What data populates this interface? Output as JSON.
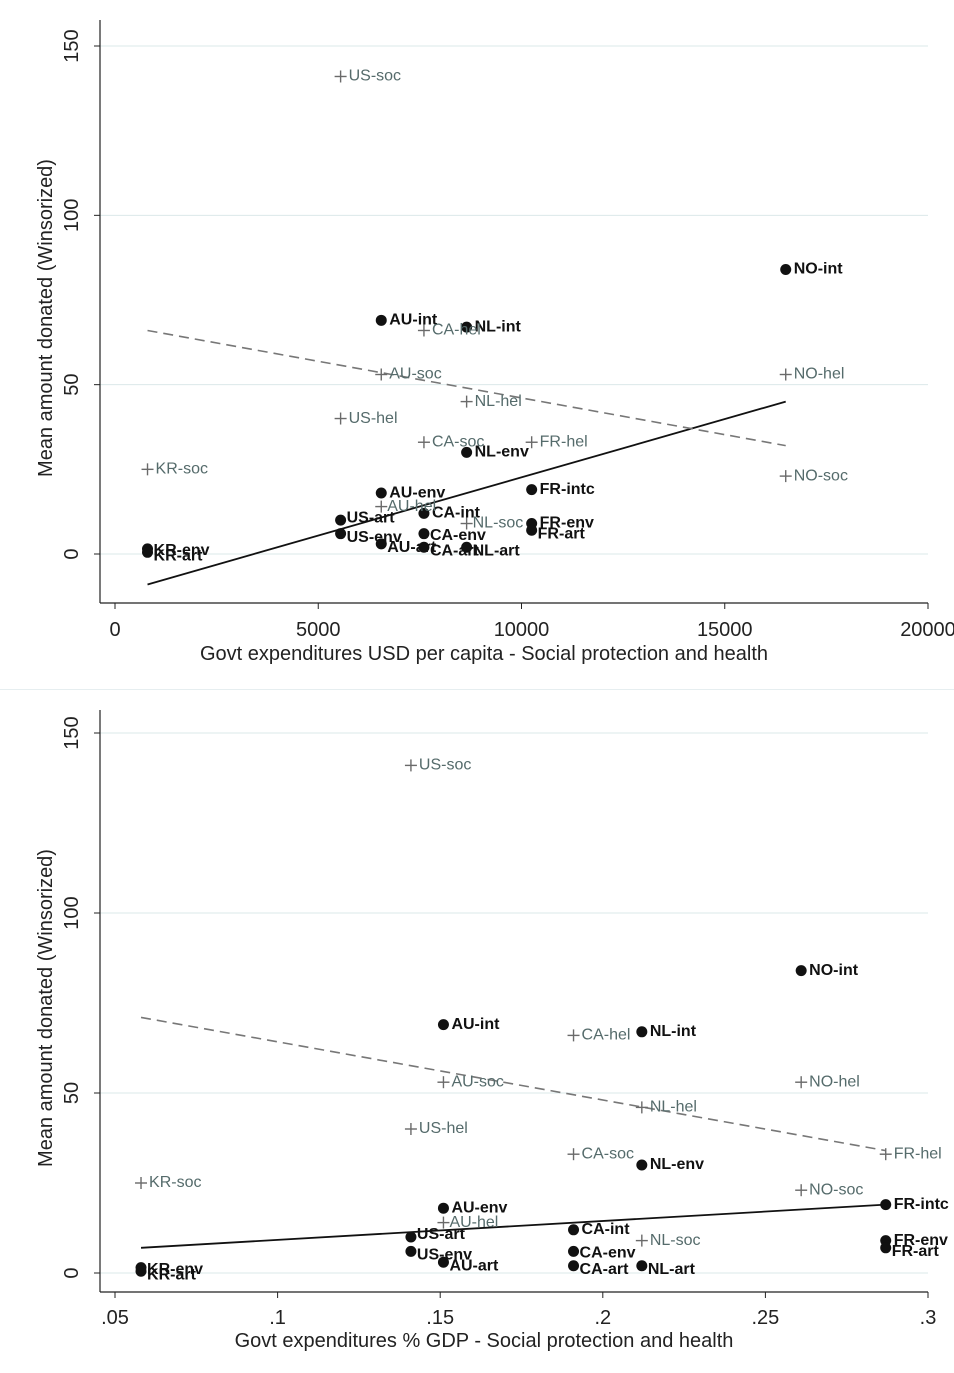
{
  "chart_data": [
    {
      "type": "scatter",
      "xlabel": "Govt expenditures USD per capita - Social protection and health",
      "ylabel": "Mean amount donated (Winsorized)",
      "xlim": [
        0,
        20000
      ],
      "ylim": [
        0,
        150
      ],
      "xticks": [
        0,
        5000,
        10000,
        15000,
        20000
      ],
      "xtick_labels": [
        "0",
        "5000",
        "10000",
        "15000",
        "20000"
      ],
      "yticks": [
        0,
        50,
        100,
        150
      ],
      "ytick_labels": [
        "0",
        "50",
        "100",
        "150"
      ],
      "grid": "horizontal",
      "series": [
        {
          "marker": "dot",
          "color": "#111111",
          "points": [
            {
              "label": "NO-int",
              "x": 16500,
              "y": 84
            },
            {
              "label": "AU-int",
              "x": 6550,
              "y": 69
            },
            {
              "label": "NL-int",
              "x": 8650,
              "y": 67
            },
            {
              "label": "NL-env",
              "x": 8650,
              "y": 30
            },
            {
              "label": "AU-env",
              "x": 6550,
              "y": 18
            },
            {
              "label": "FR-intc",
              "x": 10250,
              "y": 19
            },
            {
              "label": "CA-int",
              "x": 7600,
              "y": 12
            },
            {
              "label": "FR-env",
              "x": 10250,
              "y": 9
            },
            {
              "label": "FR-art",
              "x": 10250,
              "y": 7
            },
            {
              "label": "US-art",
              "x": 5550,
              "y": 10
            },
            {
              "label": "US-env",
              "x": 5550,
              "y": 6
            },
            {
              "label": "CA-env",
              "x": 7600,
              "y": 6
            },
            {
              "label": "AU-art",
              "x": 6550,
              "y": 3
            },
            {
              "label": "CA-art",
              "x": 7600,
              "y": 2
            },
            {
              "label": "NL-art",
              "x": 8650,
              "y": 2
            },
            {
              "label": "KR-env",
              "x": 800,
              "y": 1.5
            },
            {
              "label": "KR-art",
              "x": 800,
              "y": 0.5
            }
          ]
        },
        {
          "marker": "plus",
          "color": "#6a6a6a",
          "points": [
            {
              "label": "US-soc",
              "x": 5550,
              "y": 141
            },
            {
              "label": "CA-hel",
              "x": 7600,
              "y": 66
            },
            {
              "label": "AU-soc",
              "x": 6550,
              "y": 53
            },
            {
              "label": "NO-hel",
              "x": 16500,
              "y": 53
            },
            {
              "label": "NL-hel",
              "x": 8650,
              "y": 45
            },
            {
              "label": "US-hel",
              "x": 5550,
              "y": 40
            },
            {
              "label": "CA-soc",
              "x": 7600,
              "y": 33
            },
            {
              "label": "FR-hel",
              "x": 10250,
              "y": 33
            },
            {
              "label": "KR-soc",
              "x": 800,
              "y": 25
            },
            {
              "label": "NO-soc",
              "x": 16500,
              "y": 23
            },
            {
              "label": "AU-hel",
              "x": 6550,
              "y": 14
            },
            {
              "label": "NL-soc",
              "x": 8650,
              "y": 9
            }
          ]
        }
      ],
      "fit_lines": [
        {
          "style": "solid",
          "x": [
            800,
            16500
          ],
          "y": [
            -9,
            45
          ]
        },
        {
          "style": "dashed",
          "x": [
            800,
            16500
          ],
          "y": [
            66,
            32
          ]
        }
      ]
    },
    {
      "type": "scatter",
      "xlabel": "Govt expenditures % GDP - Social protection and health",
      "ylabel": "Mean amount donated (Winsorized)",
      "xlim": [
        0.05,
        0.3
      ],
      "ylim": [
        0,
        150
      ],
      "xticks": [
        0.05,
        0.1,
        0.15,
        0.2,
        0.25,
        0.3
      ],
      "xtick_labels": [
        ".05",
        ".1",
        ".15",
        ".2",
        ".25",
        ".3"
      ],
      "yticks": [
        0,
        50,
        100,
        150
      ],
      "ytick_labels": [
        "0",
        "50",
        "100",
        "150"
      ],
      "grid": "horizontal",
      "series": [
        {
          "marker": "dot",
          "color": "#111111",
          "points": [
            {
              "label": "NO-int",
              "x": 0.261,
              "y": 84
            },
            {
              "label": "AU-int",
              "x": 0.151,
              "y": 69
            },
            {
              "label": "NL-int",
              "x": 0.212,
              "y": 67
            },
            {
              "label": "NL-env",
              "x": 0.212,
              "y": 30
            },
            {
              "label": "AU-env",
              "x": 0.151,
              "y": 18
            },
            {
              "label": "CA-int",
              "x": 0.191,
              "y": 12
            },
            {
              "label": "FR-env",
              "x": 0.287,
              "y": 9
            },
            {
              "label": "FR-art",
              "x": 0.287,
              "y": 7
            },
            {
              "label": "US-art",
              "x": 0.141,
              "y": 10
            },
            {
              "label": "US-env",
              "x": 0.141,
              "y": 6
            },
            {
              "label": "CA-env",
              "x": 0.191,
              "y": 6
            },
            {
              "label": "AU-art",
              "x": 0.151,
              "y": 3
            },
            {
              "label": "CA-art",
              "x": 0.191,
              "y": 2
            },
            {
              "label": "NL-art",
              "x": 0.212,
              "y": 2
            },
            {
              "label": "KR-env",
              "x": 0.058,
              "y": 1.5
            },
            {
              "label": "KR-art",
              "x": 0.058,
              "y": 0.5
            },
            {
              "label": "FR-intc",
              "x": 0.287,
              "y": 19
            }
          ]
        },
        {
          "marker": "plus",
          "color": "#6a6a6a",
          "points": [
            {
              "label": "US-soc",
              "x": 0.141,
              "y": 141
            },
            {
              "label": "CA-hel",
              "x": 0.191,
              "y": 66
            },
            {
              "label": "AU-soc",
              "x": 0.151,
              "y": 53
            },
            {
              "label": "NO-hel",
              "x": 0.261,
              "y": 53
            },
            {
              "label": "NL-hel",
              "x": 0.212,
              "y": 46
            },
            {
              "label": "US-hel",
              "x": 0.141,
              "y": 40
            },
            {
              "label": "CA-soc",
              "x": 0.191,
              "y": 33
            },
            {
              "label": "FR-hel",
              "x": 0.287,
              "y": 33
            },
            {
              "label": "KR-soc",
              "x": 0.058,
              "y": 25
            },
            {
              "label": "NO-soc",
              "x": 0.261,
              "y": 23
            },
            {
              "label": "AU-hel",
              "x": 0.151,
              "y": 14
            },
            {
              "label": "NL-soc",
              "x": 0.212,
              "y": 9
            }
          ]
        }
      ],
      "fit_lines": [
        {
          "style": "solid",
          "x": [
            0.058,
            0.287
          ],
          "y": [
            7,
            19
          ]
        },
        {
          "style": "dashed",
          "x": [
            0.058,
            0.287
          ],
          "y": [
            71,
            34
          ]
        }
      ]
    }
  ]
}
